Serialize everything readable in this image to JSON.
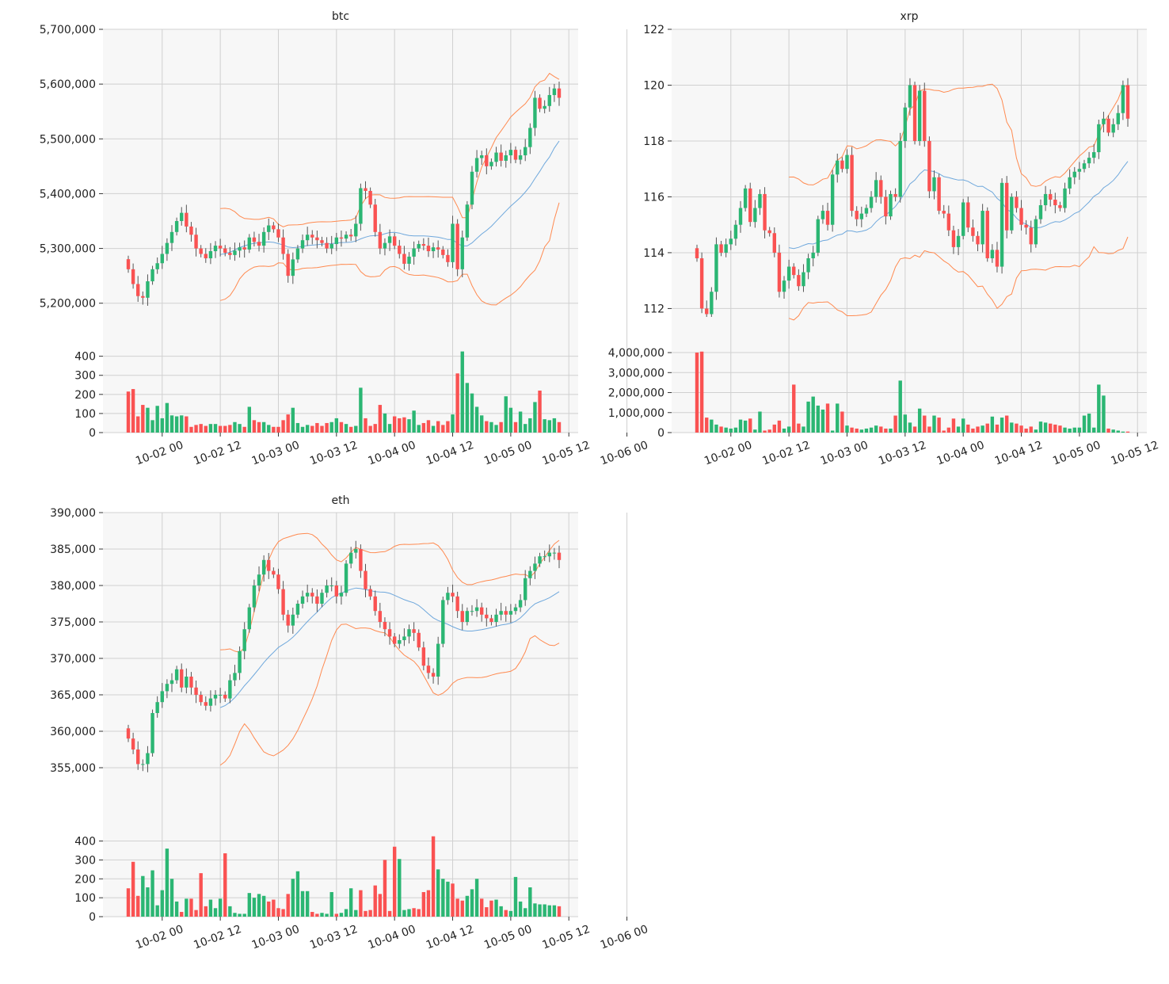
{
  "colors": {
    "up": "#2bb673",
    "down": "#fa5252",
    "wick": "#555555",
    "ma": "#6fa8dc",
    "band": "#ff8a50",
    "plot_bg": "#f7f7f7",
    "grid": "#d0d0d0"
  },
  "x_tick_labels": [
    "10-02 00",
    "10-02 12",
    "10-03 00",
    "10-03 12",
    "10-04 00",
    "10-04 12",
    "10-05 00",
    "10-05 12",
    "10-06 00"
  ],
  "chart_data": [
    {
      "type": "candlestick",
      "title": "btc",
      "interval_hours": 1,
      "x_start": "2020-10-01 17:00",
      "x_ticks": [
        "2020-10-02 00:00",
        "2020-10-02 12:00",
        "2020-10-03 00:00",
        "2020-10-03 12:00",
        "2020-10-04 00:00",
        "2020-10-04 12:00",
        "2020-10-05 00:00",
        "2020-10-05 12:00",
        "2020-10-06 00:00"
      ],
      "price_ylim": [
        5175000,
        5700000
      ],
      "price_ticks": [
        5200000,
        5300000,
        5400000,
        5500000,
        5600000,
        5700000
      ],
      "price_tick_labels": [
        "5,200,000",
        "5,300,000",
        "5,400,000",
        "5,500,000",
        "5,600,000",
        "5,700,000"
      ],
      "volume_ylim": [
        0,
        440
      ],
      "volume_ticks": [
        0,
        100,
        200,
        300,
        400
      ],
      "volume_tick_labels": [
        "0",
        "100",
        "200",
        "300",
        "400"
      ],
      "close": [
        5262000,
        5235000,
        5213000,
        5210000,
        5240000,
        5262000,
        5273000,
        5290000,
        5310000,
        5330000,
        5350000,
        5365000,
        5340000,
        5325000,
        5300000,
        5290000,
        5282000,
        5295000,
        5305000,
        5300000,
        5292000,
        5288000,
        5296000,
        5302000,
        5298000,
        5320000,
        5312000,
        5305000,
        5330000,
        5342000,
        5335000,
        5320000,
        5290000,
        5250000,
        5280000,
        5300000,
        5315000,
        5325000,
        5320000,
        5315000,
        5310000,
        5300000,
        5308000,
        5320000,
        5318000,
        5325000,
        5322000,
        5345000,
        5410000,
        5405000,
        5380000,
        5330000,
        5300000,
        5310000,
        5322000,
        5305000,
        5290000,
        5272000,
        5285000,
        5300000,
        5308000,
        5305000,
        5295000,
        5302000,
        5298000,
        5288000,
        5275000,
        5345000,
        5262000,
        5320000,
        5380000,
        5440000,
        5465000,
        5470000,
        5450000,
        5458000,
        5475000,
        5460000,
        5470000,
        5480000,
        5462000,
        5470000,
        5485000,
        5520000,
        5575000,
        5555000,
        5560000,
        5580000,
        5592000,
        5575000
      ],
      "volume": [
        215,
        228,
        85,
        145,
        130,
        65,
        140,
        75,
        155,
        90,
        85,
        90,
        85,
        30,
        40,
        45,
        35,
        45,
        45,
        35,
        35,
        40,
        55,
        45,
        30,
        135,
        65,
        55,
        55,
        40,
        30,
        30,
        65,
        95,
        130,
        50,
        30,
        40,
        35,
        50,
        35,
        50,
        55,
        75,
        55,
        45,
        30,
        35,
        235,
        75,
        35,
        45,
        145,
        100,
        45,
        85,
        75,
        80,
        70,
        115,
        40,
        50,
        65,
        35,
        60,
        40,
        60,
        95,
        310,
        425,
        260,
        205,
        135,
        90,
        60,
        55,
        40,
        55,
        190,
        130,
        55,
        110,
        45,
        75,
        160,
        220,
        70,
        65,
        75,
        55
      ]
    },
    {
      "type": "candlestick",
      "title": "xrp",
      "interval_hours": 1,
      "x_start": "2020-10-01 17:00",
      "x_ticks": [
        "2020-10-02 00:00",
        "2020-10-02 12:00",
        "2020-10-03 00:00",
        "2020-10-03 12:00",
        "2020-10-04 00:00",
        "2020-10-04 12:00",
        "2020-10-05 00:00",
        "2020-10-05 12:00",
        "2020-10-06 00:00"
      ],
      "price_ylim": [
        111.7,
        122.0
      ],
      "price_ticks": [
        112,
        114,
        116,
        118,
        120,
        122
      ],
      "price_tick_labels": [
        "112",
        "114",
        "116",
        "118",
        "120",
        "122"
      ],
      "volume_ylim": [
        0,
        4200000
      ],
      "volume_ticks": [
        0,
        1000000,
        2000000,
        3000000,
        4000000
      ],
      "volume_tick_labels": [
        "0",
        "1,000,000",
        "2,000,000",
        "3,000,000",
        "4,000,000"
      ],
      "close": [
        113.8,
        112.0,
        111.8,
        112.6,
        114.3,
        114.0,
        114.3,
        114.5,
        115.0,
        115.6,
        116.3,
        115.1,
        115.6,
        116.1,
        114.8,
        114.7,
        114.0,
        112.6,
        113.0,
        113.5,
        113.2,
        112.8,
        113.3,
        113.8,
        114.0,
        115.2,
        115.5,
        115.0,
        116.8,
        117.3,
        117.0,
        117.5,
        115.5,
        115.2,
        115.4,
        115.6,
        116.0,
        116.6,
        116.0,
        115.3,
        116.1,
        116.0,
        118.0,
        119.2,
        120.0,
        118.0,
        119.8,
        118.0,
        116.2,
        116.7,
        115.5,
        115.4,
        114.8,
        114.2,
        114.6,
        115.8,
        114.9,
        114.6,
        114.3,
        115.5,
        113.8,
        114.1,
        113.5,
        116.5,
        114.8,
        116.0,
        115.6,
        115.0,
        114.9,
        114.3,
        115.2,
        115.7,
        116.1,
        115.9,
        115.7,
        115.6,
        116.3,
        116.7,
        116.9,
        117.0,
        117.2,
        117.4,
        117.6,
        118.6,
        118.8,
        118.3,
        118.6,
        119.0,
        120.0,
        118.8
      ],
      "volume": [
        4000000,
        4050000,
        750000,
        650000,
        400000,
        300000,
        250000,
        200000,
        250000,
        650000,
        600000,
        700000,
        150000,
        1050000,
        100000,
        150000,
        400000,
        600000,
        200000,
        300000,
        2400000,
        450000,
        300000,
        1550000,
        1800000,
        1350000,
        1150000,
        1450000,
        100000,
        1450000,
        1050000,
        350000,
        250000,
        200000,
        150000,
        200000,
        250000,
        350000,
        300000,
        200000,
        200000,
        850000,
        2600000,
        900000,
        500000,
        300000,
        1200000,
        850000,
        300000,
        850000,
        750000,
        100000,
        250000,
        700000,
        300000,
        700000,
        400000,
        200000,
        300000,
        350000,
        450000,
        800000,
        400000,
        750000,
        850000,
        500000,
        450000,
        350000,
        200000,
        300000,
        150000,
        550000,
        500000,
        450000,
        400000,
        350000,
        250000,
        200000,
        250000,
        250000,
        850000,
        950000,
        250000,
        2400000,
        1850000,
        200000,
        150000,
        100000,
        50000,
        50000
      ]
    },
    {
      "type": "candlestick",
      "title": "eth",
      "interval_hours": 1,
      "x_start": "2020-10-01 17:00",
      "x_ticks": [
        "2020-10-02 00:00",
        "2020-10-02 12:00",
        "2020-10-03 00:00",
        "2020-10-03 12:00",
        "2020-10-04 00:00",
        "2020-10-04 12:00",
        "2020-10-05 00:00",
        "2020-10-05 12:00",
        "2020-10-06 00:00"
      ],
      "price_ylim": [
        350000,
        390000
      ],
      "price_ticks": [
        355000,
        360000,
        365000,
        370000,
        375000,
        380000,
        385000,
        390000
      ],
      "price_tick_labels": [
        "355,000",
        "360,000",
        "365,000",
        "370,000",
        "375,000",
        "380,000",
        "385,000",
        "390,000"
      ],
      "volume_ylim": [
        0,
        440
      ],
      "volume_ticks": [
        0,
        100,
        200,
        300,
        400
      ],
      "volume_tick_labels": [
        "0",
        "100",
        "200",
        "300",
        "400"
      ],
      "close": [
        359000,
        357500,
        355500,
        355500,
        357000,
        362500,
        364000,
        365500,
        366500,
        367000,
        368500,
        366000,
        367500,
        366000,
        365000,
        364000,
        363500,
        364500,
        365000,
        365000,
        364500,
        367000,
        368000,
        371000,
        374000,
        377000,
        380000,
        381500,
        383500,
        382000,
        381500,
        379500,
        376000,
        374500,
        376000,
        377500,
        378500,
        379000,
        378500,
        377500,
        379000,
        380000,
        380000,
        378500,
        379000,
        383000,
        384500,
        385000,
        382000,
        379500,
        378500,
        376500,
        375000,
        374000,
        373000,
        372000,
        372500,
        373000,
        374000,
        373500,
        371500,
        369000,
        368000,
        367500,
        372000,
        378000,
        379000,
        378500,
        376500,
        375000,
        376500,
        376500,
        377000,
        376000,
        375500,
        375000,
        376000,
        376500,
        376000,
        376500,
        377000,
        378000,
        381000,
        382000,
        383000,
        384000,
        384000,
        384500,
        384500,
        383500
      ],
      "volume": [
        150,
        290,
        110,
        215,
        155,
        245,
        60,
        140,
        360,
        200,
        80,
        25,
        95,
        95,
        35,
        230,
        55,
        90,
        45,
        95,
        335,
        55,
        20,
        15,
        15,
        125,
        100,
        120,
        110,
        80,
        90,
        45,
        40,
        120,
        200,
        240,
        135,
        135,
        25,
        15,
        20,
        15,
        130,
        15,
        20,
        40,
        150,
        35,
        140,
        30,
        35,
        165,
        120,
        300,
        30,
        370,
        305,
        35,
        40,
        45,
        40,
        130,
        140,
        425,
        250,
        200,
        185,
        175,
        95,
        85,
        110,
        145,
        200,
        95,
        50,
        85,
        90,
        55,
        35,
        30,
        210,
        80,
        45,
        155,
        70,
        65,
        65,
        60,
        60,
        55
      ]
    }
  ]
}
